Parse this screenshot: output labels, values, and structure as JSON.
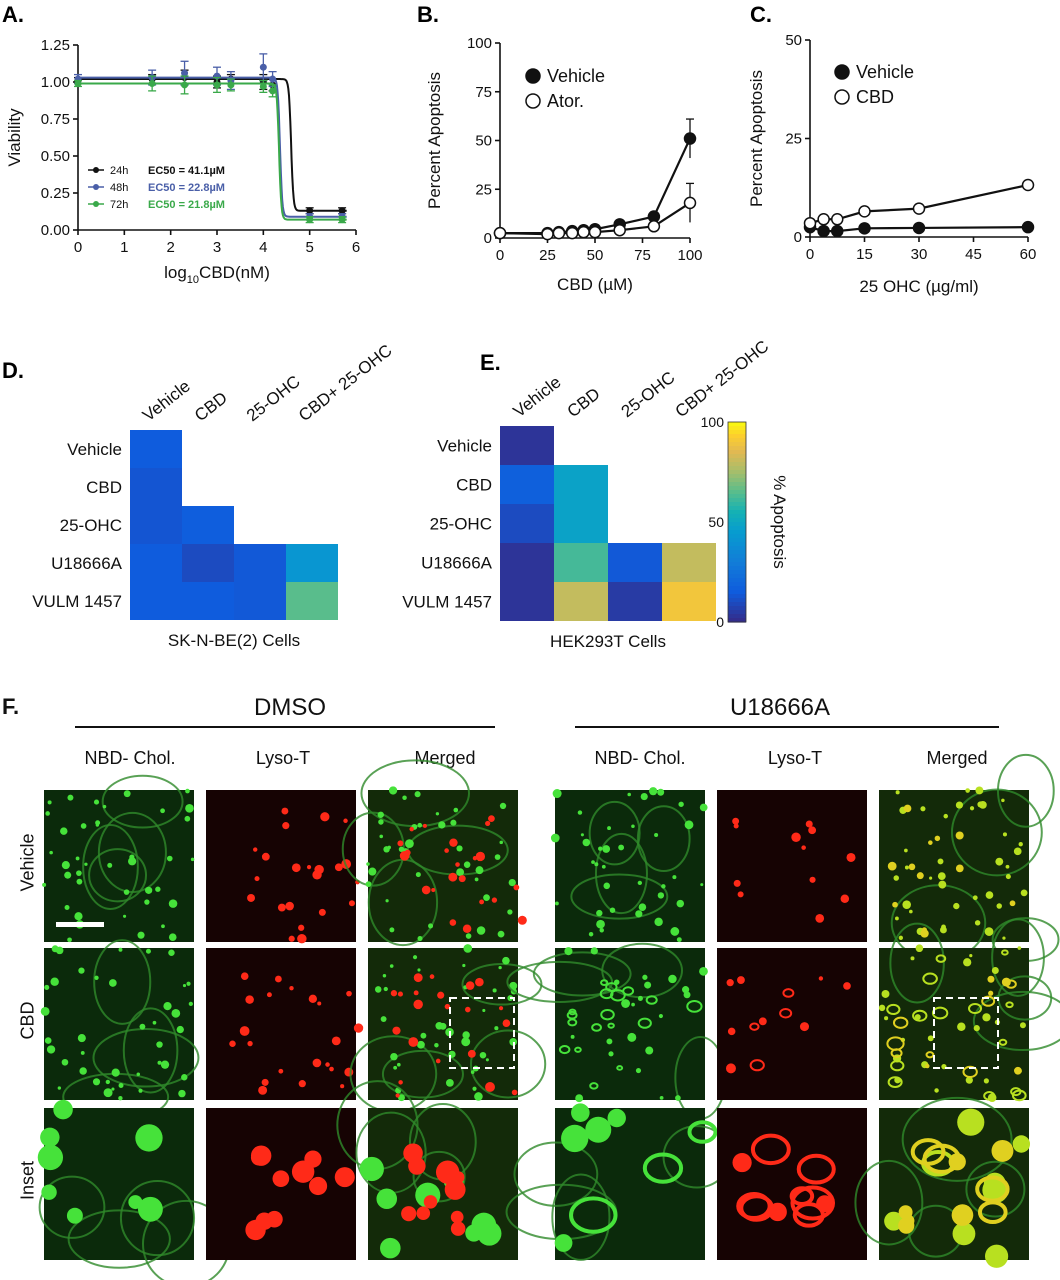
{
  "chart_data": [
    {
      "id": "A",
      "panel_label": "A.",
      "type": "line",
      "xlabel": "log10CBD(nM)",
      "xlabel_main": "log",
      "xlabel_sub": "10",
      "xlabel_rest": "CBD(nM)",
      "ylabel": "Viability",
      "xlim": [
        0,
        6
      ],
      "ylim": [
        0,
        1.25
      ],
      "xticks": [
        "0",
        "1",
        "2",
        "3",
        "4",
        "5",
        "6"
      ],
      "yticks": [
        "0.00",
        "0.25",
        "0.50",
        "0.75",
        "1.00",
        "1.25"
      ],
      "legend_position": "lower-left",
      "series": [
        {
          "name": "24h",
          "ec50_label": "EC50 = 41.1µM",
          "color": "#111111",
          "x": [
            0,
            1.6,
            2.3,
            3.0,
            3.3,
            4.0,
            4.2,
            5.0,
            5.7
          ],
          "y": [
            1.01,
            1.02,
            1.03,
            1.0,
            1.02,
            1.0,
            0.98,
            0.13,
            0.13
          ],
          "err": [
            0.02,
            0.03,
            0.05,
            0.04,
            0.03,
            0.05,
            0.04,
            0.02,
            0.02
          ],
          "fit_top": 1.02,
          "fit_bottom": 0.13,
          "fit_x50": 4.6
        },
        {
          "name": "48h",
          "ec50_label": "EC50 = 22.8µM",
          "color": "#4a5fa8",
          "x": [
            0,
            1.6,
            2.3,
            3.0,
            3.3,
            4.0,
            4.2,
            5.0,
            5.7
          ],
          "y": [
            1.02,
            1.03,
            1.06,
            1.04,
            1.01,
            1.1,
            1.02,
            0.09,
            0.09
          ],
          "err": [
            0.03,
            0.05,
            0.08,
            0.06,
            0.06,
            0.09,
            0.05,
            0.02,
            0.02
          ],
          "fit_top": 1.03,
          "fit_bottom": 0.09,
          "fit_x50": 4.36
        },
        {
          "name": "72h",
          "ec50_label": "EC50 = 21.8µM",
          "color": "#3aa94a",
          "x": [
            0,
            1.6,
            2.3,
            3.0,
            3.3,
            4.0,
            4.2,
            5.0,
            5.7
          ],
          "y": [
            0.99,
            0.99,
            0.98,
            0.98,
            0.98,
            0.97,
            0.94,
            0.07,
            0.07
          ],
          "err": [
            0.02,
            0.05,
            0.06,
            0.05,
            0.04,
            0.04,
            0.04,
            0.02,
            0.02
          ],
          "fit_top": 0.99,
          "fit_bottom": 0.07,
          "fit_x50": 4.34
        }
      ]
    },
    {
      "id": "B",
      "panel_label": "B.",
      "type": "line",
      "xlabel": "CBD (µM)",
      "ylabel": "Percent Apoptosis",
      "xlim": [
        0,
        100
      ],
      "ylim": [
        0,
        100
      ],
      "xticks": [
        "0",
        "25",
        "50",
        "75",
        "100"
      ],
      "yticks": [
        "0",
        "25",
        "50",
        "75",
        "100"
      ],
      "legend_position": "top-left",
      "series": [
        {
          "name": "Vehicle",
          "filled": true,
          "x": [
            0,
            25,
            31,
            38,
            44,
            50,
            63,
            81,
            100
          ],
          "y": [
            2.5,
            2.5,
            3,
            3.5,
            4,
            4.5,
            7,
            11,
            51
          ],
          "err": [
            0,
            0,
            0,
            0,
            0,
            0,
            1.2,
            1.5,
            10
          ]
        },
        {
          "name": "Ator.",
          "filled": false,
          "x": [
            0,
            25,
            31,
            38,
            44,
            50,
            63,
            81,
            100
          ],
          "y": [
            2.5,
            2,
            2.5,
            2.5,
            3,
            3,
            4,
            6,
            18
          ],
          "err": [
            0,
            0,
            0,
            0,
            0,
            0,
            0,
            0.8,
            10
          ]
        }
      ]
    },
    {
      "id": "C",
      "panel_label": "C.",
      "type": "line",
      "xlabel": "25 OHC (µg/ml)",
      "ylabel": "Percent Apoptosis",
      "xlim": [
        0,
        60
      ],
      "ylim": [
        0,
        50
      ],
      "xticks": [
        "0",
        "15",
        "30",
        "45",
        "60"
      ],
      "yticks": [
        "0",
        "25",
        "50"
      ],
      "legend_position": "top-left",
      "series": [
        {
          "name": "Vehicle",
          "filled": true,
          "x": [
            0,
            3.75,
            7.5,
            15,
            30,
            60
          ],
          "y": [
            2.5,
            1.5,
            1.5,
            2.2,
            2.3,
            2.5
          ]
        },
        {
          "name": "CBD",
          "filled": false,
          "x": [
            0,
            3.75,
            7.5,
            15,
            30,
            60
          ],
          "y": [
            3.5,
            4.5,
            4.5,
            6.5,
            7.2,
            13.2
          ]
        }
      ]
    },
    {
      "id": "D",
      "panel_label": "D.",
      "type": "heatmap",
      "title": "SK-N-BE(2) Cells",
      "columns": [
        "Vehicle",
        "CBD",
        "25-OHC",
        "CBD+ 25-OHC"
      ],
      "rows": [
        "Vehicle",
        "CBD",
        "25-OHC",
        "U18666A",
        "VULM 1457"
      ],
      "values": [
        [
          15,
          null,
          null,
          null
        ],
        [
          13,
          null,
          null,
          null
        ],
        [
          13,
          16,
          null,
          null
        ],
        [
          15,
          10,
          14,
          42
        ],
        [
          15,
          15,
          14,
          65
        ]
      ]
    },
    {
      "id": "E",
      "panel_label": "E.",
      "type": "heatmap",
      "title": "HEK293T Cells",
      "colorbar_label": "% Apoptosis",
      "colorbar_ticks": [
        "0",
        "50",
        "100"
      ],
      "colorbar_range": [
        0,
        100
      ],
      "columns": [
        "Vehicle",
        "CBD",
        "25-OHC",
        "CBD+ 25-OHC"
      ],
      "rows": [
        "Vehicle",
        "CBD",
        "25-OHC",
        "U18666A",
        "VULM 1457"
      ],
      "values": [
        [
          3,
          null,
          null,
          null
        ],
        [
          17,
          48,
          null,
          null
        ],
        [
          10,
          48,
          null,
          null
        ],
        [
          3,
          62,
          14,
          80
        ],
        [
          3,
          80,
          5,
          90
        ]
      ]
    }
  ],
  "figure_f": {
    "panel_label": "F.",
    "groups": [
      {
        "label": "DMSO",
        "columns": [
          "NBD- Chol.",
          "Lyso-T",
          "Merged"
        ]
      },
      {
        "label": "U18666A",
        "columns": [
          "NBD- Chol.",
          "Lyso-T",
          "Merged"
        ]
      }
    ],
    "rows": [
      "Vehicle",
      "CBD",
      "Inset"
    ]
  }
}
